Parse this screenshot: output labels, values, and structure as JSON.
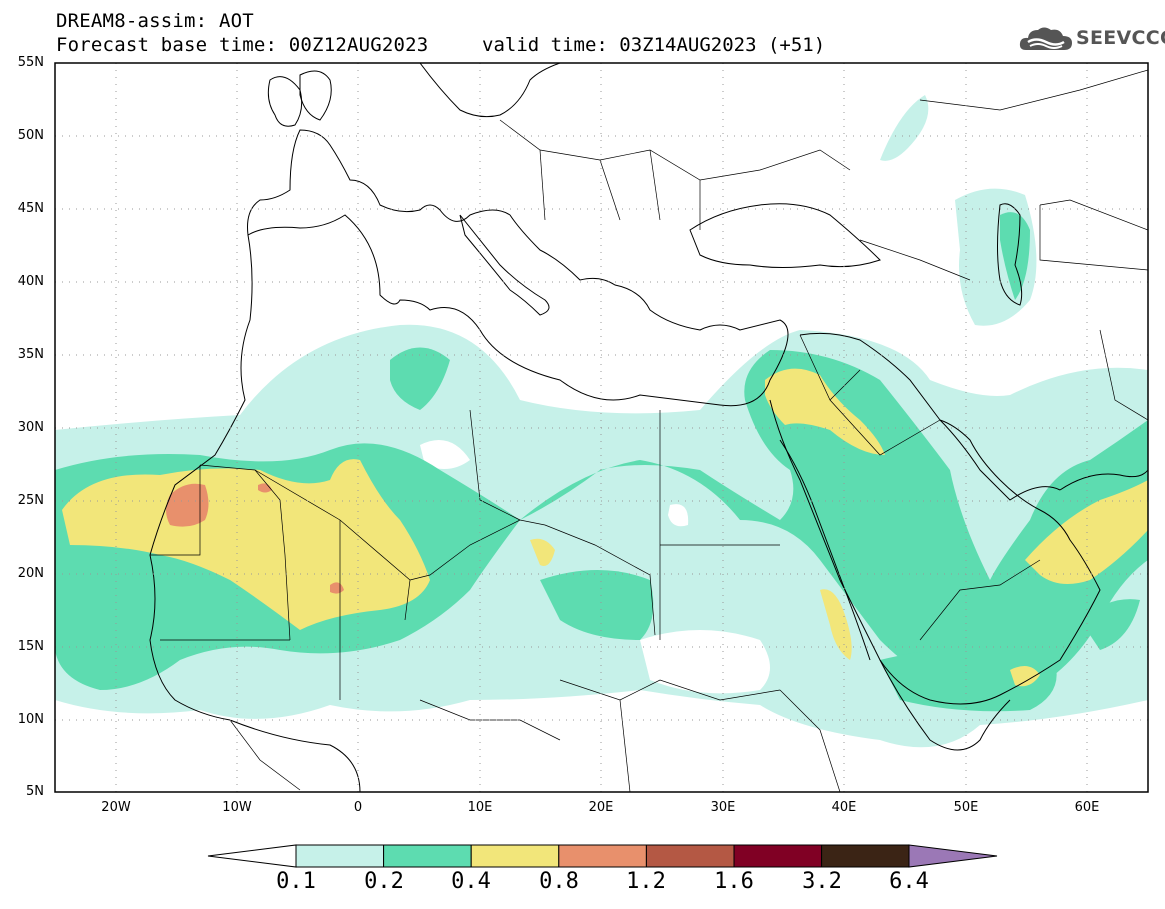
{
  "header": {
    "title": "DREAM8-assim: AOT",
    "base_time": "Forecast base time: 00Z12AUG2023",
    "valid_time": "valid time: 03Z14AUG2023 (+51)"
  },
  "logo": {
    "text": "SEEVCCC",
    "icon": "cloud-icon"
  },
  "map": {
    "lon_range": [
      -25,
      65
    ],
    "lat_range": [
      5,
      55
    ],
    "y_ticks": [
      "55N",
      "50N",
      "45N",
      "40N",
      "35N",
      "30N",
      "25N",
      "20N",
      "15N",
      "10N",
      "5N"
    ],
    "x_ticks": [
      "20W",
      "10W",
      "0",
      "10E",
      "20E",
      "30E",
      "40E",
      "50E",
      "60E"
    ]
  },
  "colorbar": {
    "labels": [
      "0.1",
      "0.2",
      "0.4",
      "0.8",
      "1.2",
      "1.6",
      "3.2",
      "6.4"
    ],
    "colors": [
      "#ffffff",
      "#c6f1e9",
      "#5ddcb0",
      "#f2e67a",
      "#e8906c",
      "#b45844",
      "#800024",
      "#3b2415",
      "#9b78b6"
    ]
  }
}
